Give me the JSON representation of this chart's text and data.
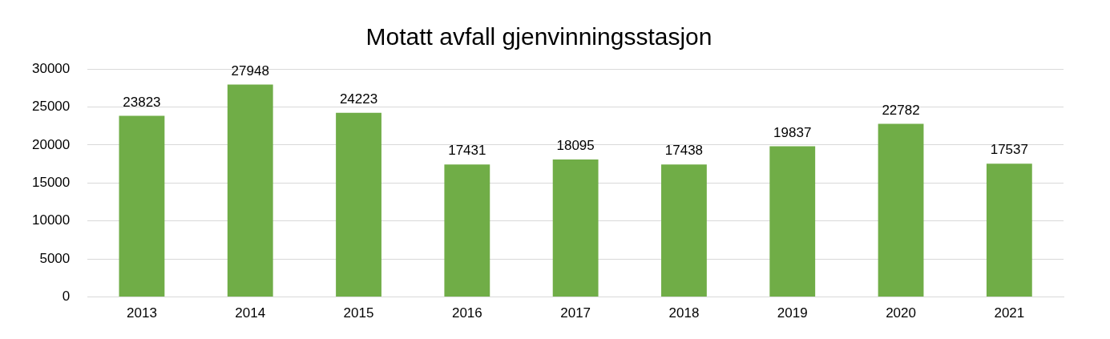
{
  "chart_data": {
    "type": "bar",
    "title": "Motatt avfall gjenvinningsstasjon",
    "categories": [
      "2013",
      "2014",
      "2015",
      "2016",
      "2017",
      "2018",
      "2019",
      "2020",
      "2021"
    ],
    "values": [
      23823,
      27948,
      24223,
      17431,
      18095,
      17438,
      19837,
      22782,
      17537
    ],
    "color": "#70ad47",
    "ylim": [
      0,
      30000
    ],
    "yticks": [
      0,
      5000,
      10000,
      15000,
      20000,
      25000,
      30000
    ],
    "grid": "y",
    "data_labels": true
  }
}
